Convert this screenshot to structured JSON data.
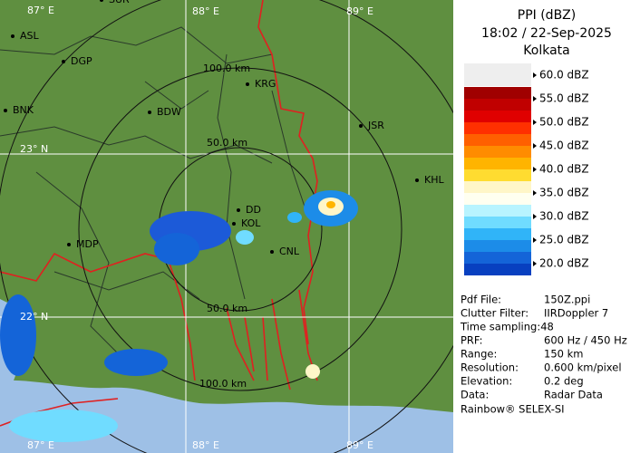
{
  "panel": {
    "title": "PPI (dBZ)",
    "time": "18:02 / 22-Sep-2025",
    "site": "Kolkata",
    "scale": [
      {
        "label": "60.0 dBZ",
        "colors": [
          "#a00000",
          "#c00000"
        ]
      },
      {
        "label": "55.0 dBZ",
        "colors": [
          "#e00000",
          "#ff3000"
        ]
      },
      {
        "label": "50.0 dBZ",
        "colors": [
          "#ff6000",
          "#ff8c00"
        ]
      },
      {
        "label": "45.0 dBZ",
        "colors": [
          "#ffb400",
          "#ffdc30"
        ]
      },
      {
        "label": "40.0 dBZ",
        "colors": [
          "#fff6c8",
          "#fffff0"
        ]
      },
      {
        "label": "35.0 dBZ",
        "colors": [
          "#b8f4ff",
          "#70dcff"
        ]
      },
      {
        "label": "30.0 dBZ",
        "colors": [
          "#30b4f8",
          "#1c8ce8"
        ]
      },
      {
        "label": "25.0 dBZ",
        "colors": [
          "#1464d8",
          "#0840c0"
        ]
      },
      {
        "label": "20.0 dBZ",
        "colors": [
          "#0028a8",
          "#001488"
        ]
      }
    ],
    "info": [
      [
        "Pdf File:",
        "150Z.ppi"
      ],
      [
        "Clutter Filter:",
        "IIRDoppler 7"
      ],
      [
        "Time sampling:48",
        ""
      ],
      [
        "PRF:",
        "600 Hz / 450 Hz"
      ],
      [
        "Range:",
        "150 km"
      ],
      [
        "Resolution:",
        "0.600 km/pixel"
      ],
      [
        "Elevation:",
        "0.2 deg"
      ],
      [
        "Data:",
        "Radar Data"
      ]
    ],
    "footer": "Rainbow® SELEX-SI"
  },
  "map": {
    "grid_labels": [
      "87° E",
      "88° E",
      "89° E",
      "23° N",
      "22° N",
      "87° E",
      "88° E",
      "89° E"
    ],
    "ring_labels": [
      "100.0 km",
      "50.0 km",
      "50.0 km",
      "100.0 km"
    ],
    "places": [
      "SUR",
      "ASL",
      "DGP",
      "KRG",
      "BNK",
      "BDW",
      "JSR",
      "KHL",
      "DD",
      "KOL",
      "CNL",
      "MDP"
    ]
  }
}
